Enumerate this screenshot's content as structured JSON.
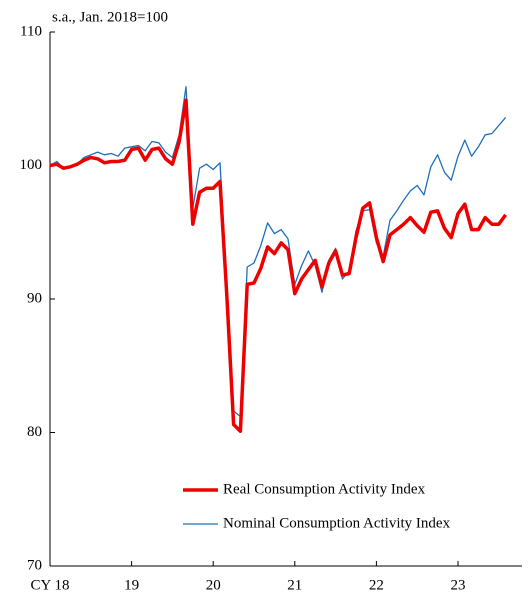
{
  "chart_data": {
    "type": "line",
    "y_label": "s.a., Jan. 2018=100",
    "categories": [
      "CY 18",
      null,
      null,
      null,
      null,
      null,
      null,
      null,
      null,
      null,
      null,
      null,
      "19",
      null,
      null,
      null,
      null,
      null,
      null,
      null,
      null,
      null,
      null,
      null,
      "20",
      null,
      null,
      null,
      null,
      null,
      null,
      null,
      null,
      null,
      null,
      null,
      "21",
      null,
      null,
      null,
      null,
      null,
      null,
      null,
      null,
      null,
      null,
      null,
      "22",
      null,
      null,
      null,
      null,
      null,
      null,
      null,
      null,
      null,
      null,
      null,
      "23",
      null,
      null,
      null,
      null,
      null,
      null,
      null
    ],
    "series": [
      {
        "name": "Nominal Consumption Activity Index",
        "color": "#1f6fb8",
        "width": 1.3,
        "values": [
          100,
          100.3,
          99.8,
          99.9,
          100.1,
          100.6,
          100.8,
          101.0,
          100.8,
          100.9,
          100.7,
          101.3,
          101.4,
          101.5,
          101.1,
          101.8,
          101.7,
          101.0,
          100.6,
          102.3,
          105.9,
          96.8,
          99.8,
          100.1,
          99.7,
          100.2,
          91.0,
          81.6,
          81.2,
          92.4,
          92.7,
          94.0,
          95.7,
          94.9,
          95.2,
          94.5,
          91.1,
          92.5,
          93.6,
          92.5,
          90.5,
          92.9,
          93.8,
          91.5,
          92.1,
          95.1,
          96.6,
          96.7,
          94.2,
          93.2,
          95.9,
          96.6,
          97.4,
          98.1,
          98.5,
          97.8,
          99.9,
          100.8,
          99.5,
          98.9,
          100.7,
          101.9,
          100.7,
          101.4,
          102.3,
          102.4,
          103.0,
          103.6
        ]
      },
      {
        "name": "Real Consumption Activity Index",
        "color": "#ee0000",
        "width": 3.5,
        "values": [
          100,
          100.1,
          99.8,
          99.9,
          100.1,
          100.4,
          100.6,
          100.5,
          100.2,
          100.3,
          100.3,
          100.4,
          101.2,
          101.3,
          100.4,
          101.2,
          101.3,
          100.5,
          100.1,
          101.8,
          104.9,
          95.6,
          98.0,
          98.3,
          98.3,
          98.8,
          90.3,
          80.6,
          80.1,
          91.1,
          91.2,
          92.3,
          93.9,
          93.4,
          94.2,
          93.7,
          90.4,
          91.5,
          92.2,
          92.9,
          90.9,
          92.7,
          93.6,
          91.8,
          91.9,
          94.6,
          96.8,
          97.2,
          94.6,
          92.8,
          94.8,
          95.2,
          95.6,
          96.1,
          95.5,
          95.0,
          96.5,
          96.6,
          95.3,
          94.6,
          96.4,
          97.1,
          95.2,
          95.2,
          96.1,
          95.6,
          95.6,
          96.3
        ]
      }
    ],
    "ylim": [
      70,
      110
    ],
    "yticks": [
      70,
      80,
      90,
      100,
      110
    ],
    "grid": false
  }
}
